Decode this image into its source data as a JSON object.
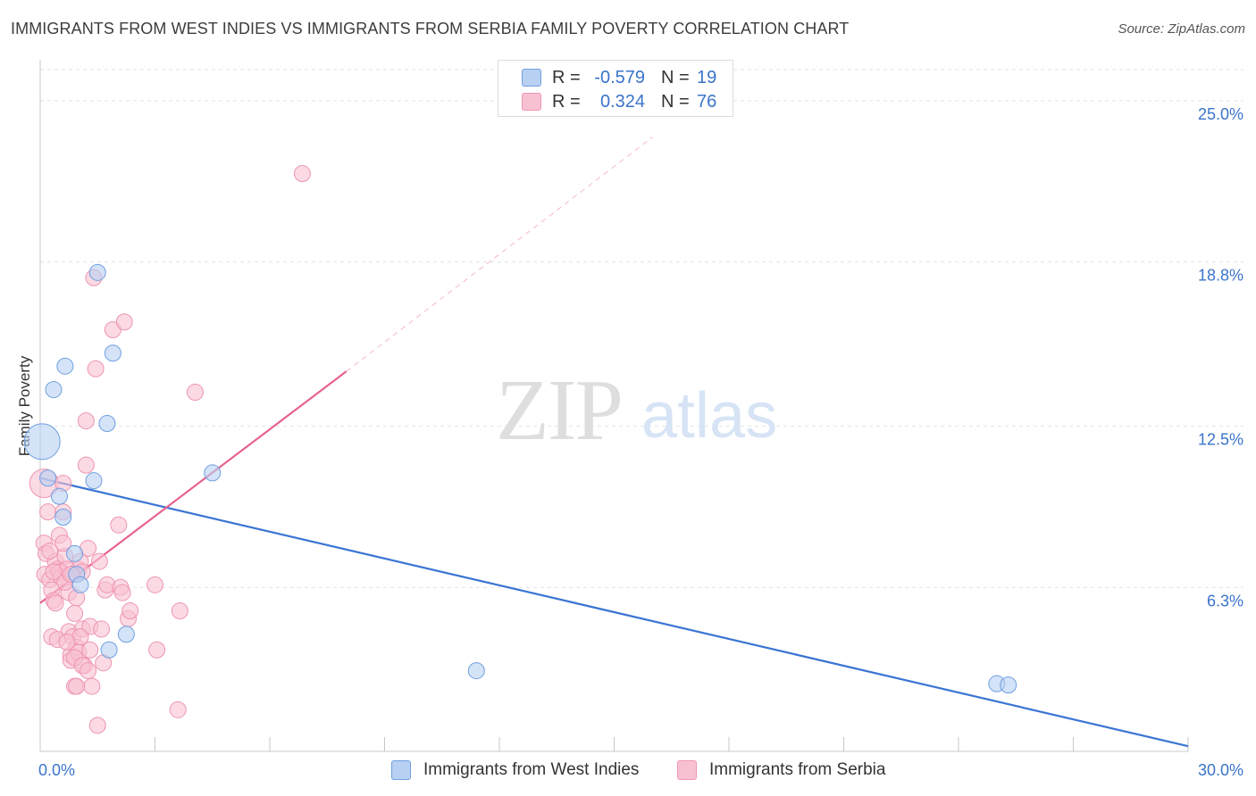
{
  "title": "IMMIGRANTS FROM WEST INDIES VS IMMIGRANTS FROM SERBIA FAMILY POVERTY CORRELATION CHART",
  "source": "Source: ZipAtlas.com",
  "watermark": {
    "zip": "ZIP",
    "atlas": "atlas"
  },
  "colors": {
    "blue_fill": "#b8d0f2",
    "blue_stroke": "#6f9fe0",
    "blue_line": "#3a74d4",
    "pink_fill": "#f8c1d2",
    "pink_stroke": "#ee95b1",
    "pink_line": "#e8628e",
    "axis_text": "#3a74c9"
  },
  "legend": {
    "r_label": "R =",
    "n_label": "N =",
    "rows": [
      {
        "r": "-0.579",
        "n": "19"
      },
      {
        "r": "0.324",
        "n": "76"
      }
    ]
  },
  "chart_data": {
    "type": "scatter",
    "title": "IMMIGRANTS FROM WEST INDIES VS IMMIGRANTS FROM SERBIA FAMILY POVERTY CORRELATION CHART",
    "xlabel": "",
    "ylabel": "Family Poverty",
    "xlim": [
      0,
      30
    ],
    "ylim": [
      0,
      26.4
    ],
    "x_tick_labels": [
      "0.0%",
      "30.0%"
    ],
    "y_ticks": [
      6.3,
      12.5,
      18.8,
      25.0
    ],
    "y_tick_labels": [
      "6.3%",
      "12.5%",
      "18.8%",
      "25.0%"
    ],
    "grid": true,
    "legend_position": "top-center",
    "series": [
      {
        "name": "Immigrants from West Indies",
        "R": -0.579,
        "N": 19,
        "trend": {
          "x": [
            0.0,
            30.0
          ],
          "y": [
            10.5,
            0.2
          ]
        },
        "points": [
          [
            0.05,
            11.9,
            20
          ],
          [
            0.2,
            10.5,
            9
          ],
          [
            0.35,
            13.9,
            9
          ],
          [
            0.5,
            9.8,
            9
          ],
          [
            0.6,
            9.0,
            9
          ],
          [
            0.65,
            14.8,
            9
          ],
          [
            0.9,
            7.6,
            9
          ],
          [
            0.95,
            6.8,
            9
          ],
          [
            1.05,
            6.4,
            9
          ],
          [
            1.5,
            18.4,
            9
          ],
          [
            1.4,
            10.4,
            9
          ],
          [
            1.9,
            15.3,
            9
          ],
          [
            1.75,
            12.6,
            9
          ],
          [
            1.8,
            3.9,
            9
          ],
          [
            2.25,
            4.5,
            9
          ],
          [
            4.5,
            10.7,
            9
          ],
          [
            11.4,
            3.1,
            9
          ],
          [
            25.0,
            2.6,
            9
          ],
          [
            25.3,
            2.55,
            9
          ]
        ]
      },
      {
        "name": "Immigrants from Serbia",
        "R": 0.324,
        "N": 76,
        "trend": {
          "x": [
            0.0,
            8.0
          ],
          "y": [
            5.7,
            14.6
          ]
        },
        "trend_extension": {
          "x": [
            8.0,
            16.0
          ],
          "y": [
            14.6,
            23.6
          ]
        },
        "points": [
          [
            0.1,
            10.3,
            16
          ],
          [
            0.1,
            8.0,
            9
          ],
          [
            0.15,
            7.6,
            9
          ],
          [
            0.12,
            6.8,
            9
          ],
          [
            0.2,
            9.2,
            9
          ],
          [
            0.25,
            6.6,
            9
          ],
          [
            0.3,
            6.2,
            9
          ],
          [
            0.35,
            5.8,
            9
          ],
          [
            0.4,
            7.3,
            9
          ],
          [
            0.45,
            7.0,
            9
          ],
          [
            0.3,
            4.4,
            9
          ],
          [
            0.5,
            8.3,
            9
          ],
          [
            0.55,
            6.9,
            9
          ],
          [
            0.6,
            10.3,
            9
          ],
          [
            0.6,
            9.2,
            9
          ],
          [
            0.65,
            7.5,
            9
          ],
          [
            0.7,
            6.7,
            9
          ],
          [
            0.75,
            6.1,
            9
          ],
          [
            0.75,
            4.6,
            9
          ],
          [
            0.8,
            3.7,
            9
          ],
          [
            0.8,
            3.5,
            9
          ],
          [
            0.85,
            4.4,
            9
          ],
          [
            0.9,
            2.5,
            9
          ],
          [
            0.9,
            5.3,
            9
          ],
          [
            0.95,
            4.0,
            9
          ],
          [
            1.0,
            3.8,
            9
          ],
          [
            1.0,
            7.0,
            9
          ],
          [
            1.05,
            7.3,
            9
          ],
          [
            1.1,
            6.9,
            9
          ],
          [
            1.1,
            4.7,
            9
          ],
          [
            1.15,
            3.3,
            9
          ],
          [
            1.2,
            12.7,
            9
          ],
          [
            1.2,
            11.0,
            9
          ],
          [
            1.25,
            7.8,
            9
          ],
          [
            1.3,
            4.8,
            9
          ],
          [
            1.3,
            3.9,
            9
          ],
          [
            1.35,
            2.5,
            9
          ],
          [
            1.4,
            18.2,
            9
          ],
          [
            1.45,
            14.7,
            9
          ],
          [
            1.5,
            1.0,
            9
          ],
          [
            1.55,
            7.3,
            9
          ],
          [
            1.6,
            4.7,
            9
          ],
          [
            1.65,
            3.4,
            9
          ],
          [
            1.7,
            6.2,
            9
          ],
          [
            1.75,
            6.4,
            9
          ],
          [
            1.9,
            16.2,
            9
          ],
          [
            2.05,
            8.7,
            9
          ],
          [
            2.1,
            6.3,
            9
          ],
          [
            2.15,
            6.1,
            9
          ],
          [
            2.2,
            16.5,
            9
          ],
          [
            2.3,
            5.1,
            9
          ],
          [
            2.35,
            5.4,
            9
          ],
          [
            3.0,
            6.4,
            9
          ],
          [
            3.05,
            3.9,
            9
          ],
          [
            3.6,
            1.6,
            9
          ],
          [
            3.65,
            5.4,
            9
          ],
          [
            4.05,
            13.8,
            9
          ],
          [
            6.85,
            22.2,
            9
          ],
          [
            0.5,
            6.9,
            9
          ],
          [
            0.55,
            6.7,
            9
          ],
          [
            0.65,
            6.5,
            9
          ],
          [
            0.7,
            7.0,
            9
          ],
          [
            0.85,
            6.8,
            9
          ],
          [
            0.95,
            5.9,
            9
          ],
          [
            1.05,
            4.4,
            9
          ],
          [
            0.9,
            3.6,
            9
          ],
          [
            0.95,
            2.5,
            9
          ],
          [
            1.1,
            3.3,
            9
          ],
          [
            0.8,
            6.8,
            9
          ],
          [
            0.6,
            8.0,
            9
          ],
          [
            0.35,
            6.9,
            9
          ],
          [
            0.25,
            7.7,
            9
          ],
          [
            0.4,
            5.7,
            9
          ],
          [
            0.45,
            4.3,
            9
          ],
          [
            1.25,
            3.1,
            9
          ],
          [
            0.7,
            4.2,
            9
          ]
        ]
      }
    ]
  },
  "bottom_legend": [
    {
      "label": "Immigrants from West Indies"
    },
    {
      "label": "Immigrants from Serbia"
    }
  ]
}
